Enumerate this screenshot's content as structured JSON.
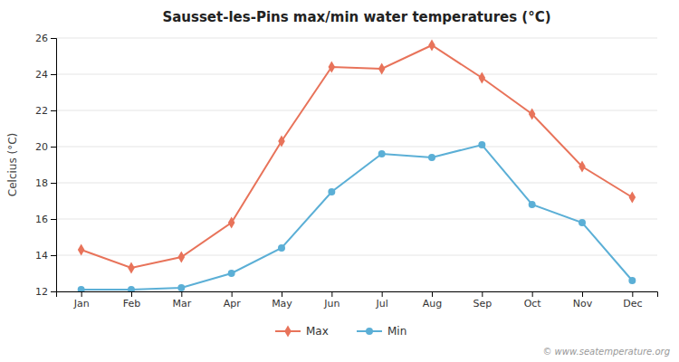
{
  "chart_data": {
    "type": "line",
    "title": "Sausset-les-Pins max/min water temperatures (°C)",
    "ylabel": "Celcius (°C)",
    "categories": [
      "Jan",
      "Feb",
      "Mar",
      "Apr",
      "May",
      "Jun",
      "Jul",
      "Aug",
      "Sep",
      "Oct",
      "Nov",
      "Dec"
    ],
    "series": [
      {
        "name": "Max",
        "color": "#e8735a",
        "marker": "diamond",
        "values": [
          14.3,
          13.3,
          13.9,
          15.8,
          20.3,
          24.4,
          24.3,
          25.6,
          23.8,
          21.8,
          18.9,
          17.2
        ]
      },
      {
        "name": "Min",
        "color": "#5bafd6",
        "marker": "circle",
        "values": [
          12.1,
          12.1,
          12.2,
          13.0,
          14.4,
          17.5,
          19.6,
          19.4,
          20.1,
          16.8,
          15.8,
          12.6
        ]
      }
    ],
    "ylim": [
      12,
      26
    ],
    "yticks": [
      12,
      14,
      16,
      18,
      20,
      22,
      24,
      26
    ],
    "grid": true,
    "legend": "bottom",
    "annotations": [
      "© www.seatemperature.org"
    ]
  }
}
